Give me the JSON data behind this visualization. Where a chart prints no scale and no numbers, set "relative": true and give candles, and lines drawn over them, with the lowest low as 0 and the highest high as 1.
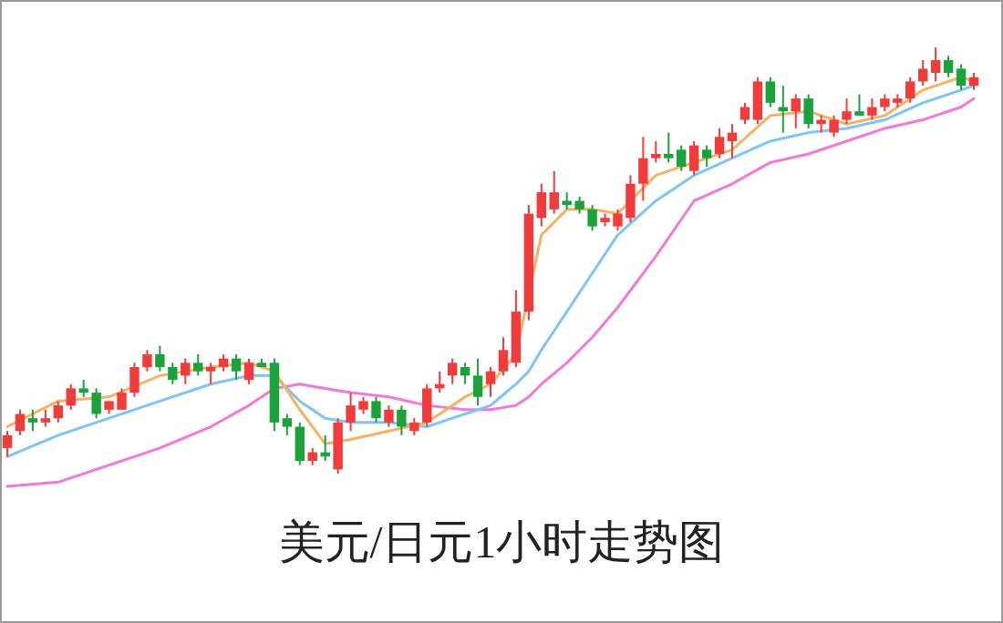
{
  "chart_data": {
    "type": "candlestick",
    "title": "美元/日元1小时走势图",
    "relative": true,
    "categories": [
      null,
      null,
      null,
      null,
      null,
      null,
      null,
      null,
      null,
      null,
      null,
      null,
      null,
      null,
      null,
      null,
      null,
      null,
      null,
      null,
      null,
      null,
      null,
      null,
      null,
      null,
      null,
      null,
      null,
      null,
      null,
      null,
      null,
      null,
      null,
      null,
      null,
      null,
      null,
      null,
      null,
      null,
      null,
      null,
      null,
      null,
      null,
      null,
      null,
      null,
      null,
      null,
      null,
      null,
      null,
      null,
      null,
      null,
      null,
      null,
      null,
      null,
      null,
      null,
      null,
      null,
      null,
      null,
      null,
      null,
      null,
      null,
      null,
      null,
      null,
      null,
      null
    ],
    "ohlc": [
      [
        0.06,
        0.1,
        0.04,
        0.09
      ],
      [
        0.1,
        0.15,
        0.09,
        0.14
      ],
      [
        0.13,
        0.15,
        0.1,
        0.12
      ],
      [
        0.12,
        0.15,
        0.11,
        0.13
      ],
      [
        0.13,
        0.17,
        0.12,
        0.16
      ],
      [
        0.16,
        0.21,
        0.15,
        0.2
      ],
      [
        0.2,
        0.22,
        0.18,
        0.19
      ],
      [
        0.19,
        0.2,
        0.13,
        0.14
      ],
      [
        0.15,
        0.17,
        0.14,
        0.17
      ],
      [
        0.15,
        0.2,
        0.15,
        0.19
      ],
      [
        0.19,
        0.26,
        0.18,
        0.25
      ],
      [
        0.25,
        0.29,
        0.24,
        0.28
      ],
      [
        0.28,
        0.3,
        0.24,
        0.25
      ],
      [
        0.25,
        0.26,
        0.21,
        0.22
      ],
      [
        0.23,
        0.27,
        0.21,
        0.26
      ],
      [
        0.26,
        0.28,
        0.23,
        0.24
      ],
      [
        0.24,
        0.26,
        0.21,
        0.25
      ],
      [
        0.25,
        0.28,
        0.24,
        0.27
      ],
      [
        0.27,
        0.28,
        0.22,
        0.24
      ],
      [
        0.22,
        0.27,
        0.21,
        0.26
      ],
      [
        0.26,
        0.27,
        0.25,
        0.25
      ],
      [
        0.26,
        0.27,
        0.1,
        0.12
      ],
      [
        0.13,
        0.14,
        0.09,
        0.11
      ],
      [
        0.11,
        0.12,
        0.02,
        0.03
      ],
      [
        0.03,
        0.06,
        0.02,
        0.05
      ],
      [
        0.05,
        0.09,
        0.03,
        0.04
      ],
      [
        0.01,
        0.13,
        0.0,
        0.12
      ],
      [
        0.12,
        0.19,
        0.1,
        0.16
      ],
      [
        0.15,
        0.18,
        0.14,
        0.17
      ],
      [
        0.17,
        0.18,
        0.12,
        0.13
      ],
      [
        0.12,
        0.16,
        0.11,
        0.15
      ],
      [
        0.15,
        0.16,
        0.09,
        0.11
      ],
      [
        0.1,
        0.13,
        0.09,
        0.12
      ],
      [
        0.12,
        0.21,
        0.11,
        0.2
      ],
      [
        0.2,
        0.24,
        0.19,
        0.21
      ],
      [
        0.23,
        0.27,
        0.21,
        0.26
      ],
      [
        0.25,
        0.26,
        0.21,
        0.23
      ],
      [
        0.23,
        0.27,
        0.16,
        0.18
      ],
      [
        0.21,
        0.25,
        0.18,
        0.24
      ],
      [
        0.24,
        0.32,
        0.23,
        0.29
      ],
      [
        0.26,
        0.43,
        0.25,
        0.38
      ],
      [
        0.38,
        0.63,
        0.36,
        0.61
      ],
      [
        0.6,
        0.68,
        0.58,
        0.66
      ],
      [
        0.62,
        0.71,
        0.61,
        0.66
      ],
      [
        0.64,
        0.66,
        0.62,
        0.63
      ],
      [
        0.64,
        0.65,
        0.61,
        0.62
      ],
      [
        0.62,
        0.63,
        0.57,
        0.58
      ],
      [
        0.59,
        0.61,
        0.58,
        0.6
      ],
      [
        0.58,
        0.62,
        0.57,
        0.61
      ],
      [
        0.6,
        0.7,
        0.59,
        0.68
      ],
      [
        0.68,
        0.79,
        0.64,
        0.74
      ],
      [
        0.74,
        0.78,
        0.73,
        0.75
      ],
      [
        0.75,
        0.8,
        0.73,
        0.74
      ],
      [
        0.76,
        0.77,
        0.71,
        0.72
      ],
      [
        0.71,
        0.78,
        0.7,
        0.77
      ],
      [
        0.76,
        0.77,
        0.72,
        0.74
      ],
      [
        0.75,
        0.81,
        0.74,
        0.79
      ],
      [
        0.78,
        0.82,
        0.74,
        0.8
      ],
      [
        0.83,
        0.87,
        0.82,
        0.86
      ],
      [
        0.83,
        0.93,
        0.82,
        0.92
      ],
      [
        0.92,
        0.93,
        0.86,
        0.87
      ],
      [
        0.86,
        0.91,
        0.8,
        0.85
      ],
      [
        0.85,
        0.89,
        0.81,
        0.88
      ],
      [
        0.88,
        0.89,
        0.81,
        0.82
      ],
      [
        0.82,
        0.84,
        0.8,
        0.83
      ],
      [
        0.8,
        0.84,
        0.79,
        0.83
      ],
      [
        0.83,
        0.88,
        0.82,
        0.85
      ],
      [
        0.85,
        0.89,
        0.84,
        0.84
      ],
      [
        0.84,
        0.88,
        0.83,
        0.86
      ],
      [
        0.86,
        0.89,
        0.85,
        0.88
      ],
      [
        0.87,
        0.89,
        0.86,
        0.88
      ],
      [
        0.88,
        0.93,
        0.87,
        0.92
      ],
      [
        0.92,
        0.97,
        0.91,
        0.95
      ],
      [
        0.94,
        1.0,
        0.92,
        0.97
      ],
      [
        0.97,
        0.98,
        0.93,
        0.94
      ],
      [
        0.95,
        0.96,
        0.9,
        0.91
      ],
      [
        0.91,
        0.94,
        0.9,
        0.93
      ]
    ],
    "colors": [
      "#f23b3b",
      "#f23b3b",
      "#1aa33a",
      "#f23b3b",
      "#f23b3b",
      "#f23b3b",
      "#1aa33a",
      "#1aa33a",
      "#f23b3b",
      "#f23b3b",
      "#f23b3b",
      "#f23b3b",
      "#1aa33a",
      "#1aa33a",
      "#f23b3b",
      "#1aa33a",
      "#f23b3b",
      "#f23b3b",
      "#1aa33a",
      "#f23b3b",
      "#1aa33a",
      "#1aa33a",
      "#1aa33a",
      "#1aa33a",
      "#f23b3b",
      "#1aa33a",
      "#f23b3b",
      "#f23b3b",
      "#f23b3b",
      "#1aa33a",
      "#f23b3b",
      "#1aa33a",
      "#f23b3b",
      "#f23b3b",
      "#f23b3b",
      "#f23b3b",
      "#1aa33a",
      "#1aa33a",
      "#f23b3b",
      "#f23b3b",
      "#f23b3b",
      "#f23b3b",
      "#f23b3b",
      "#f23b3b",
      "#1aa33a",
      "#1aa33a",
      "#1aa33a",
      "#f23b3b",
      "#f23b3b",
      "#f23b3b",
      "#f23b3b",
      "#f23b3b",
      "#1aa33a",
      "#1aa33a",
      "#f23b3b",
      "#1aa33a",
      "#f23b3b",
      "#f23b3b",
      "#f23b3b",
      "#f23b3b",
      "#1aa33a",
      "#1aa33a",
      "#f23b3b",
      "#1aa33a",
      "#f23b3b",
      "#f23b3b",
      "#f23b3b",
      "#1aa33a",
      "#f23b3b",
      "#f23b3b",
      "#f23b3b",
      "#f23b3b",
      "#f23b3b",
      "#f23b3b",
      "#1aa33a",
      "#1aa33a",
      "#f23b3b"
    ],
    "series": [
      {
        "type": "line",
        "color": "#f07ad6",
        "values": [
          -0.03,
          null,
          null,
          null,
          -0.02,
          null,
          null,
          null,
          0.02,
          null,
          null,
          null,
          0.06,
          null,
          null,
          null,
          0.11,
          null,
          null,
          0.16,
          null,
          0.2,
          null,
          0.21,
          null,
          0.2,
          null,
          0.19,
          null,
          null,
          0.18,
          null,
          null,
          0.16,
          null,
          null,
          0.15,
          null,
          0.15,
          null,
          0.16,
          0.18,
          0.21,
          null,
          0.26,
          null,
          0.32,
          null,
          0.39,
          null,
          null,
          0.51,
          null,
          null,
          0.64,
          null,
          null,
          0.68,
          null,
          null,
          0.73,
          null,
          null,
          0.75,
          null,
          null,
          0.78,
          null,
          null,
          0.81,
          null,
          null,
          0.83,
          null,
          null,
          0.86,
          0.88
        ]
      },
      {
        "type": "line",
        "color": "#7fc4f2",
        "values": [
          0.04,
          null,
          null,
          null,
          0.09,
          null,
          null,
          null,
          0.13,
          null,
          null,
          null,
          0.17,
          null,
          null,
          null,
          0.21,
          null,
          null,
          0.23,
          null,
          0.23,
          null,
          0.17,
          null,
          0.13,
          null,
          0.12,
          null,
          null,
          0.12,
          null,
          null,
          0.11,
          null,
          null,
          0.14,
          null,
          0.16,
          null,
          0.21,
          0.24,
          0.29,
          null,
          0.38,
          null,
          0.47,
          null,
          0.56,
          null,
          null,
          0.64,
          null,
          null,
          0.7,
          null,
          null,
          0.74,
          null,
          null,
          0.78,
          null,
          null,
          0.8,
          null,
          null,
          0.81,
          null,
          null,
          0.83,
          null,
          null,
          0.87,
          null,
          null,
          0.9,
          0.91
        ]
      },
      {
        "type": "line",
        "color": "#f5b266",
        "values": [
          0.11,
          null,
          null,
          null,
          0.17,
          null,
          null,
          null,
          0.18,
          null,
          null,
          null,
          0.23,
          null,
          null,
          null,
          0.25,
          null,
          null,
          0.26,
          null,
          0.24,
          null,
          0.15,
          null,
          0.07,
          null,
          0.08,
          null,
          null,
          0.1,
          null,
          null,
          0.12,
          null,
          null,
          0.18,
          null,
          0.21,
          null,
          0.28,
          null,
          0.56,
          null,
          0.62,
          null,
          0.62,
          null,
          0.61,
          null,
          null,
          0.7,
          null,
          null,
          0.73,
          null,
          null,
          0.76,
          null,
          null,
          0.84,
          null,
          null,
          0.85,
          null,
          null,
          0.82,
          null,
          null,
          0.84,
          null,
          null,
          0.9,
          null,
          null,
          0.93,
          0.92
        ]
      }
    ]
  }
}
